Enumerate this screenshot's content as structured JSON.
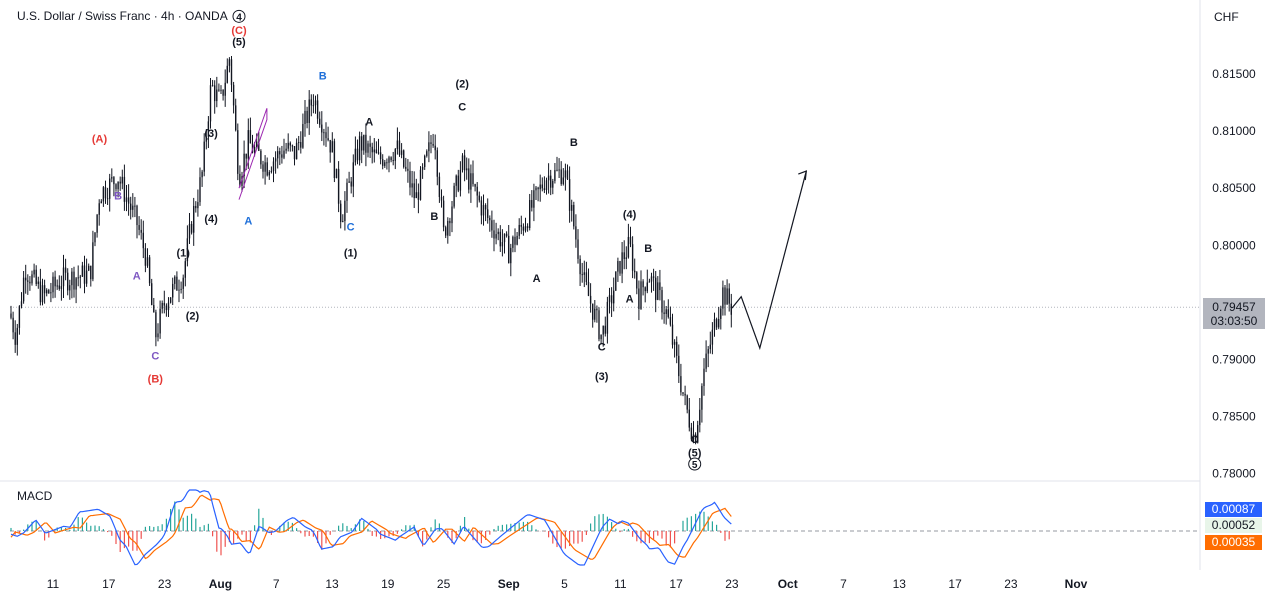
{
  "header": {
    "symbol_title": "U.S. Dollar / Swiss Franc · 4h · OANDA",
    "currency": "CHF"
  },
  "price_tag": {
    "price": "0.79457",
    "countdown": "03:03:50"
  },
  "macd": {
    "title": "MACD",
    "values": {
      "macd": "0.00087",
      "hist": "0.00052",
      "signal": "0.00035"
    },
    "colors": {
      "macd": "#2962ff",
      "hist": "#26a69a",
      "signal": "#ff6d00",
      "hist_negative": "#ef5350"
    }
  },
  "chart_data": {
    "type": "candlestick",
    "title": "U.S. Dollar / Swiss Franc · 4h · OANDA",
    "y_axis": {
      "ticks": [
        0.815,
        0.81,
        0.805,
        0.8,
        0.795,
        0.79,
        0.785,
        0.78
      ],
      "range": [
        0.777,
        0.819
      ]
    },
    "x_axis": {
      "ticks": [
        "11",
        "17",
        "23",
        "Aug",
        "7",
        "13",
        "19",
        "25",
        "Sep",
        "5",
        "11",
        "17",
        "23",
        "Oct",
        "7",
        "13",
        "17",
        "23",
        "Nov"
      ]
    },
    "price_path": [
      [
        "2024-07-05",
        0.7985
      ],
      [
        "2024-07-07",
        0.792
      ],
      [
        "2024-07-08",
        0.798
      ],
      [
        "2024-07-10",
        0.7955
      ],
      [
        "2024-07-12",
        0.797
      ],
      [
        "2024-07-15",
        0.7975
      ],
      [
        "2024-07-16",
        0.8045
      ],
      [
        "2024-07-18",
        0.806
      ],
      [
        "2024-07-20",
        0.802
      ],
      [
        "2024-07-21",
        0.799
      ],
      [
        "2024-07-22",
        0.792
      ],
      [
        "2024-07-23",
        0.795
      ],
      [
        "2024-07-25",
        0.7975
      ],
      [
        "2024-07-26",
        0.8025
      ],
      [
        "2024-07-27",
        0.806
      ],
      [
        "2024-07-28",
        0.814
      ],
      [
        "2024-07-29",
        0.8125
      ],
      [
        "2024-07-30",
        0.8165
      ],
      [
        "2024-07-31",
        0.806
      ],
      [
        "2024-08-01",
        0.809
      ],
      [
        "2024-08-03",
        0.807
      ],
      [
        "2024-08-05",
        0.8085
      ],
      [
        "2024-08-06",
        0.808
      ],
      [
        "2024-08-08",
        0.813
      ],
      [
        "2024-08-10",
        0.8085
      ],
      [
        "2024-08-11",
        0.8025
      ],
      [
        "2024-08-13",
        0.809
      ],
      [
        "2024-08-15",
        0.8075
      ],
      [
        "2024-08-17",
        0.8085
      ],
      [
        "2024-08-19",
        0.804
      ],
      [
        "2024-08-21",
        0.81
      ],
      [
        "2024-08-22",
        0.801
      ],
      [
        "2024-08-24",
        0.807
      ],
      [
        "2024-08-26",
        0.8035
      ],
      [
        "2024-08-27",
        0.802
      ],
      [
        "2024-08-29",
        0.7995
      ],
      [
        "2024-08-31",
        0.8025
      ],
      [
        "2024-09-02",
        0.806
      ],
      [
        "2024-09-04",
        0.8065
      ],
      [
        "2024-09-06",
        0.797
      ],
      [
        "2024-09-08",
        0.792
      ],
      [
        "2024-09-10",
        0.7985
      ],
      [
        "2024-09-11",
        0.8
      ],
      [
        "2024-09-12",
        0.7955
      ],
      [
        "2024-09-13",
        0.7975
      ],
      [
        "2024-09-15",
        0.794
      ],
      [
        "2024-09-16",
        0.79
      ],
      [
        "2024-09-17",
        0.786
      ],
      [
        "2024-09-18",
        0.783
      ],
      [
        "2024-09-19",
        0.789
      ],
      [
        "2024-09-20",
        0.7925
      ],
      [
        "2024-09-21",
        0.796
      ],
      [
        "2024-09-22",
        0.7945
      ]
    ],
    "projection": [
      [
        "2024-09-22",
        0.7945
      ],
      [
        "2024-09-23",
        0.7955
      ],
      [
        "2024-09-25",
        0.791
      ],
      [
        "2024-09-30",
        0.8065
      ]
    ],
    "wave_labels": [
      {
        "text": "(A)",
        "date": "2024-07-16",
        "price": 0.809,
        "color": "#e53935"
      },
      {
        "text": "B",
        "date": "2024-07-18",
        "price": 0.804,
        "color": "#7e57c2"
      },
      {
        "text": "A",
        "date": "2024-07-20",
        "price": 0.797,
        "color": "#7e57c2"
      },
      {
        "text": "C",
        "date": "2024-07-22",
        "price": 0.79,
        "color": "#7e57c2"
      },
      {
        "text": "(B)",
        "date": "2024-07-22",
        "price": 0.788,
        "color": "#e53935"
      },
      {
        "text": "(1)",
        "date": "2024-07-25",
        "price": 0.799,
        "color": "#131722"
      },
      {
        "text": "(2)",
        "date": "2024-07-26",
        "price": 0.7935,
        "color": "#131722"
      },
      {
        "text": "(3)",
        "date": "2024-07-28",
        "price": 0.8095,
        "color": "#131722"
      },
      {
        "text": "(4)",
        "date": "2024-07-28",
        "price": 0.802,
        "color": "#131722"
      },
      {
        "text": "(5)",
        "date": "2024-07-31",
        "price": 0.8175,
        "color": "#131722"
      },
      {
        "text": "(C)",
        "date": "2024-07-31",
        "price": 0.8185,
        "color": "#e53935"
      },
      {
        "text": "4",
        "date": "2024-07-31",
        "price": 0.8197,
        "color": "#131722",
        "circled": true
      },
      {
        "text": "A",
        "date": "2024-08-01",
        "price": 0.8018,
        "color": "#1e6fd9"
      },
      {
        "text": "B",
        "date": "2024-08-09",
        "price": 0.8145,
        "color": "#1e6fd9"
      },
      {
        "text": "C",
        "date": "2024-08-12",
        "price": 0.8013,
        "color": "#1e6fd9"
      },
      {
        "text": "(1)",
        "date": "2024-08-12",
        "price": 0.799,
        "color": "#131722"
      },
      {
        "text": "A",
        "date": "2024-08-14",
        "price": 0.8105,
        "color": "#131722"
      },
      {
        "text": "B",
        "date": "2024-08-21",
        "price": 0.8022,
        "color": "#131722"
      },
      {
        "text": "(2)",
        "date": "2024-08-24",
        "price": 0.8138,
        "color": "#131722"
      },
      {
        "text": "C",
        "date": "2024-08-24",
        "price": 0.8118,
        "color": "#131722"
      },
      {
        "text": "A",
        "date": "2024-09-01",
        "price": 0.7968,
        "color": "#131722"
      },
      {
        "text": "B",
        "date": "2024-09-05",
        "price": 0.8087,
        "color": "#131722"
      },
      {
        "text": "C",
        "date": "2024-09-08",
        "price": 0.7908,
        "color": "#131722"
      },
      {
        "text": "(3)",
        "date": "2024-09-08",
        "price": 0.7882,
        "color": "#131722"
      },
      {
        "text": "(4)",
        "date": "2024-09-11",
        "price": 0.8024,
        "color": "#131722"
      },
      {
        "text": "B",
        "date": "2024-09-13",
        "price": 0.7994,
        "color": "#131722"
      },
      {
        "text": "A",
        "date": "2024-09-11",
        "price": 0.795,
        "color": "#131722"
      },
      {
        "text": "C",
        "date": "2024-09-18",
        "price": 0.7827,
        "color": "#131722"
      },
      {
        "text": "(5)",
        "date": "2024-09-18",
        "price": 0.7815,
        "color": "#131722"
      },
      {
        "text": "5",
        "date": "2024-09-18",
        "price": 0.7805,
        "color": "#131722",
        "circled": true
      }
    ],
    "colors": {
      "candle": "#131722",
      "wedge": "#9c27b0",
      "projection": "#131722"
    },
    "grid": false
  }
}
